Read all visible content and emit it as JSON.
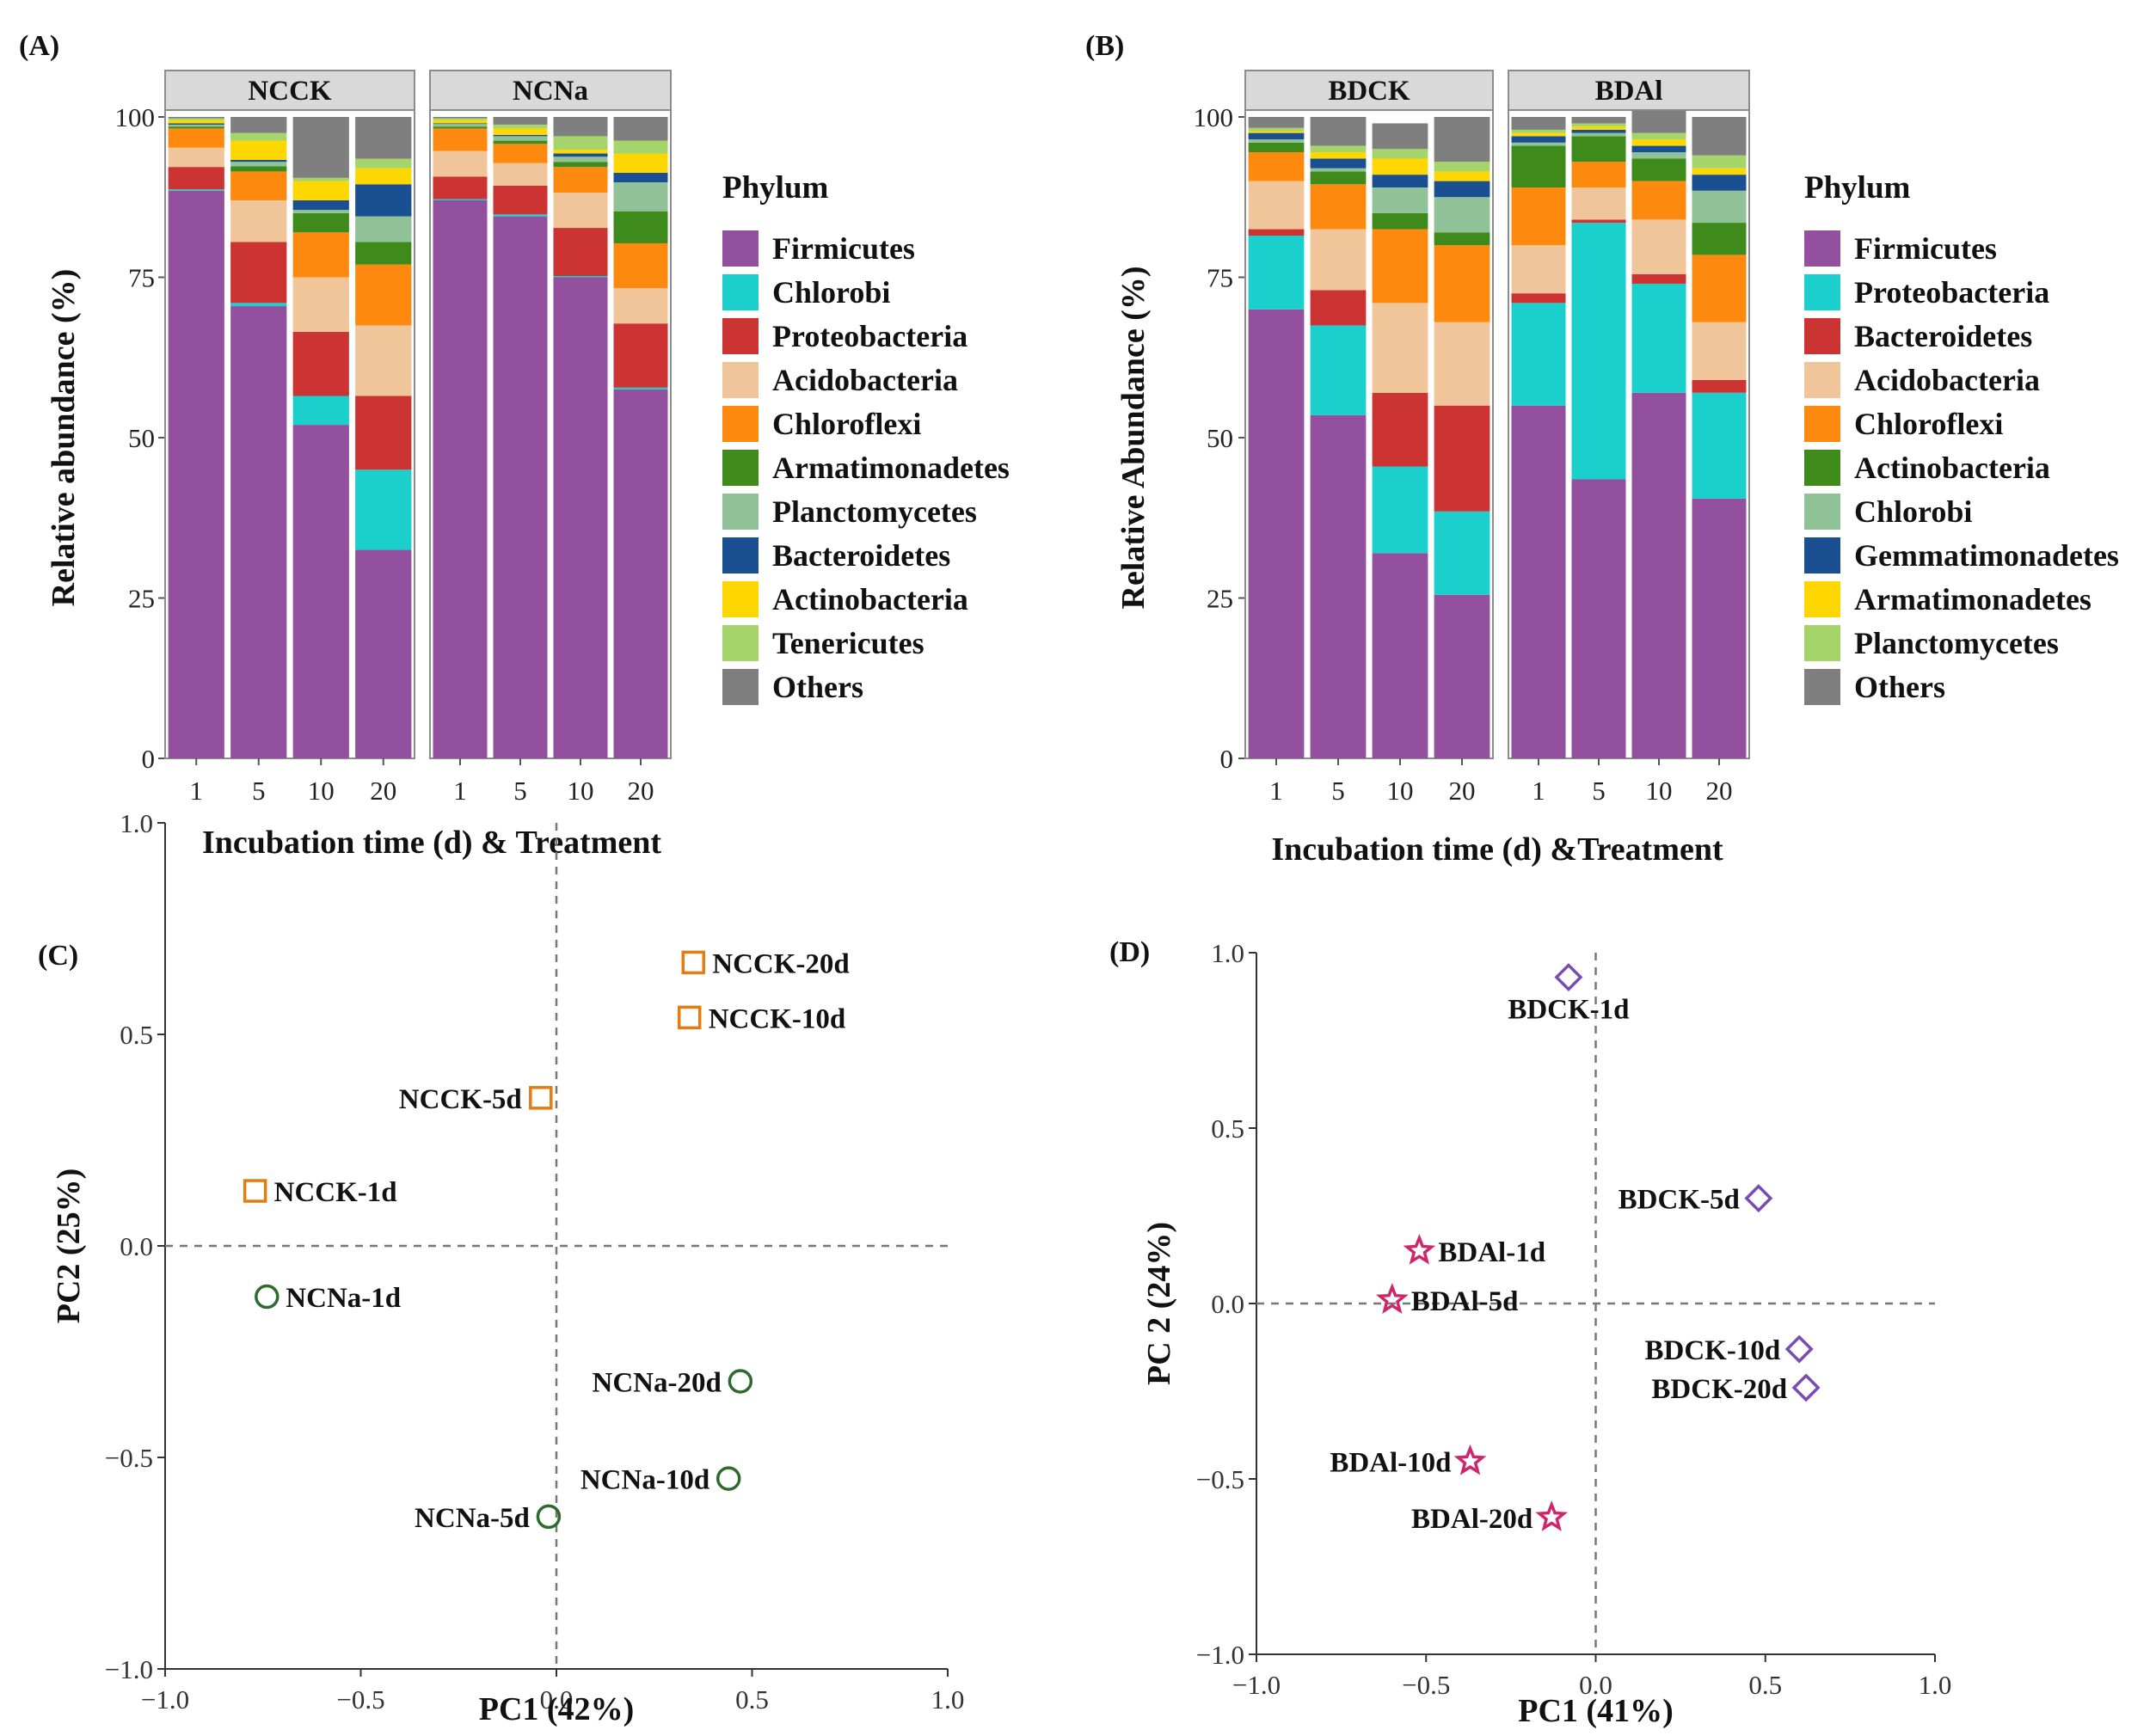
{
  "chart_data": [
    {
      "panel": "(A)",
      "type": "bar",
      "subtype": "stacked-faceted",
      "ylabel": "Relative abundance (%)",
      "xlabel": "Incubation time (d) & Treatment",
      "ylim": [
        0,
        100
      ],
      "yticks": [
        0,
        25,
        50,
        75,
        100
      ],
      "categories": [
        "1",
        "5",
        "10",
        "20"
      ],
      "legend_title": "Phylum",
      "legend": [
        {
          "name": "Firmicutes",
          "color": "#93509f"
        },
        {
          "name": "Chlorobi",
          "color": "#1acfcc"
        },
        {
          "name": "Proteobacteria",
          "color": "#cc3333"
        },
        {
          "name": "Acidobacteria",
          "color": "#f1c59a"
        },
        {
          "name": "Chloroflexi",
          "color": "#fd8a0e"
        },
        {
          "name": "Armatimonadetes",
          "color": "#3e8b1b"
        },
        {
          "name": "Planctomycetes",
          "color": "#91c297"
        },
        {
          "name": "Bacteroidetes",
          "color": "#1a4f92"
        },
        {
          "name": "Actinobacteria",
          "color": "#ffd700"
        },
        {
          "name": "Tenericutes",
          "color": "#a5d46a"
        },
        {
          "name": "Others",
          "color": "#7f7f7f"
        }
      ],
      "facets": [
        {
          "name": "NCCK",
          "bars": [
            [
              88.5,
              0.2,
              3.5,
              3.0,
              3.0,
              0.3,
              0.3,
              0.2,
              0.5,
              0.3,
              0.2
            ],
            [
              70.5,
              0.5,
              9.5,
              6.5,
              4.5,
              0.8,
              0.7,
              0.3,
              3.0,
              1.2,
              2.5
            ],
            [
              52.0,
              4.5,
              10.0,
              8.5,
              7.0,
              3.0,
              0.5,
              1.5,
              3.0,
              0.5,
              9.5
            ],
            [
              32.5,
              12.5,
              11.5,
              11.0,
              9.5,
              3.5,
              4.0,
              5.0,
              2.5,
              1.5,
              6.5
            ]
          ]
        },
        {
          "name": "NCNa",
          "bars": [
            [
              87.0,
              0.2,
              3.5,
              4.0,
              3.5,
              0.3,
              0.4,
              0.1,
              0.5,
              0.3,
              0.2
            ],
            [
              84.5,
              0.3,
              4.5,
              3.5,
              3.0,
              0.5,
              0.7,
              0.2,
              1.0,
              0.6,
              1.2
            ],
            [
              75.0,
              0.2,
              7.5,
              5.5,
              4.0,
              0.8,
              0.8,
              0.5,
              0.6,
              2.1,
              3.0
            ],
            [
              57.5,
              0.3,
              10.0,
              5.5,
              7.0,
              5.0,
              4.5,
              1.5,
              3.0,
              2.0,
              3.7
            ]
          ]
        }
      ]
    },
    {
      "panel": "(B)",
      "type": "bar",
      "subtype": "stacked-faceted",
      "ylabel": "Relative Abundance (%)",
      "xlabel": "Incubation time (d) &Treatment",
      "ylim": [
        0,
        100
      ],
      "yticks": [
        0,
        25,
        50,
        75,
        100
      ],
      "categories": [
        "1",
        "5",
        "10",
        "20"
      ],
      "legend_title": "Phylum",
      "legend": [
        {
          "name": "Firmicutes",
          "color": "#93509f"
        },
        {
          "name": "Proteobacteria",
          "color": "#1acfcc"
        },
        {
          "name": "Bacteroidetes",
          "color": "#cc3333"
        },
        {
          "name": "Acidobacteria",
          "color": "#f1c59a"
        },
        {
          "name": "Chloroflexi",
          "color": "#fd8a0e"
        },
        {
          "name": "Actinobacteria",
          "color": "#3e8b1b"
        },
        {
          "name": "Chlorobi",
          "color": "#91c297"
        },
        {
          "name": "Gemmatimonadetes",
          "color": "#1a4f92"
        },
        {
          "name": "Armatimonadetes",
          "color": "#ffd700"
        },
        {
          "name": "Planctomycetes",
          "color": "#a5d46a"
        },
        {
          "name": "Others",
          "color": "#7f7f7f"
        }
      ],
      "facets": [
        {
          "name": "BDCK",
          "bars": [
            [
              70.0,
              11.5,
              1.0,
              7.5,
              4.5,
              1.5,
              0.5,
              1.0,
              0.3,
              0.5,
              1.7
            ],
            [
              53.5,
              14.0,
              5.5,
              9.5,
              7.0,
              2.0,
              0.5,
              1.5,
              1.0,
              1.0,
              4.5
            ],
            [
              32.0,
              13.5,
              11.5,
              14.0,
              11.5,
              2.5,
              4.0,
              2.0,
              2.5,
              1.5,
              4.0
            ],
            [
              25.5,
              13.0,
              16.5,
              13.0,
              12.0,
              2.0,
              5.5,
              2.5,
              1.5,
              1.5,
              7.0
            ]
          ]
        },
        {
          "name": "BDAl",
          "bars": [
            [
              55.0,
              16.0,
              1.5,
              7.5,
              9.0,
              6.5,
              0.5,
              1.0,
              0.5,
              0.5,
              2.0
            ],
            [
              43.5,
              40.0,
              0.5,
              5.0,
              4.0,
              4.0,
              0.5,
              0.5,
              0.5,
              0.5,
              1.0
            ],
            [
              57.0,
              17.0,
              1.5,
              8.5,
              6.0,
              3.5,
              1.0,
              1.0,
              1.0,
              1.0,
              3.5
            ],
            [
              40.5,
              16.5,
              2.0,
              9.0,
              10.5,
              5.0,
              5.0,
              2.5,
              1.0,
              2.0,
              6.0
            ]
          ]
        }
      ]
    },
    {
      "panel": "(C)",
      "type": "scatter",
      "xlabel": "PC1 (42%)",
      "ylabel": "PC2 (25%)",
      "xlim": [
        -1.0,
        1.0
      ],
      "ylim": [
        -1.0,
        1.0
      ],
      "xticks": [
        "−1.0",
        "−0.5",
        "0.0",
        "0.5",
        "1.0"
      ],
      "yticks": [
        "−1.0",
        "−0.5",
        "0.0",
        "0.5",
        "1.0"
      ],
      "series": [
        {
          "name": "NCCK",
          "marker": "square",
          "color": "#e57c13",
          "points": [
            {
              "label": "NCCK-1d",
              "x": -0.77,
              "y": 0.13,
              "anchor": "right"
            },
            {
              "label": "NCCK-5d",
              "x": -0.04,
              "y": 0.35,
              "anchor": "left"
            },
            {
              "label": "NCCK-10d",
              "x": 0.34,
              "y": 0.54,
              "anchor": "right"
            },
            {
              "label": "NCCK-20d",
              "x": 0.35,
              "y": 0.67,
              "anchor": "right"
            }
          ]
        },
        {
          "name": "NCNa",
          "marker": "circle",
          "color": "#2e6b2e",
          "points": [
            {
              "label": "NCNa-1d",
              "x": -0.74,
              "y": -0.12,
              "anchor": "right"
            },
            {
              "label": "NCNa-5d",
              "x": -0.02,
              "y": -0.64,
              "anchor": "left"
            },
            {
              "label": "NCNa-10d",
              "x": 0.44,
              "y": -0.55,
              "anchor": "left"
            },
            {
              "label": "NCNa-20d",
              "x": 0.47,
              "y": -0.32,
              "anchor": "left"
            }
          ]
        }
      ]
    },
    {
      "panel": "(D)",
      "type": "scatter",
      "xlabel": "PC1 (41%)",
      "ylabel": "PC 2 (24%)",
      "xlim": [
        -1.0,
        1.0
      ],
      "ylim": [
        -1.0,
        1.0
      ],
      "xticks": [
        "−1.0",
        "−0.5",
        "0.0",
        "0.5",
        "1.0"
      ],
      "yticks": [
        "−1.0",
        "−0.5",
        "0.0",
        "0.5",
        "1.0"
      ],
      "series": [
        {
          "name": "BDCK",
          "marker": "diamond",
          "color": "#7a4bb3",
          "points": [
            {
              "label": "BDCK-1d",
              "x": -0.08,
              "y": 0.93,
              "anchor": "below"
            },
            {
              "label": "BDCK-5d",
              "x": 0.48,
              "y": 0.3,
              "anchor": "left"
            },
            {
              "label": "BDCK-10d",
              "x": 0.6,
              "y": -0.13,
              "anchor": "left"
            },
            {
              "label": "BDCK-20d",
              "x": 0.62,
              "y": -0.24,
              "anchor": "left"
            }
          ]
        },
        {
          "name": "BDAl",
          "marker": "star",
          "color": "#d0256b",
          "points": [
            {
              "label": "BDAl-1d",
              "x": -0.52,
              "y": 0.15,
              "anchor": "right"
            },
            {
              "label": "BDAl-5d",
              "x": -0.6,
              "y": 0.01,
              "anchor": "right"
            },
            {
              "label": "BDAl-10d",
              "x": -0.37,
              "y": -0.45,
              "anchor": "left"
            },
            {
              "label": "BDAl-20d",
              "x": -0.13,
              "y": -0.61,
              "anchor": "left"
            }
          ]
        }
      ]
    }
  ]
}
